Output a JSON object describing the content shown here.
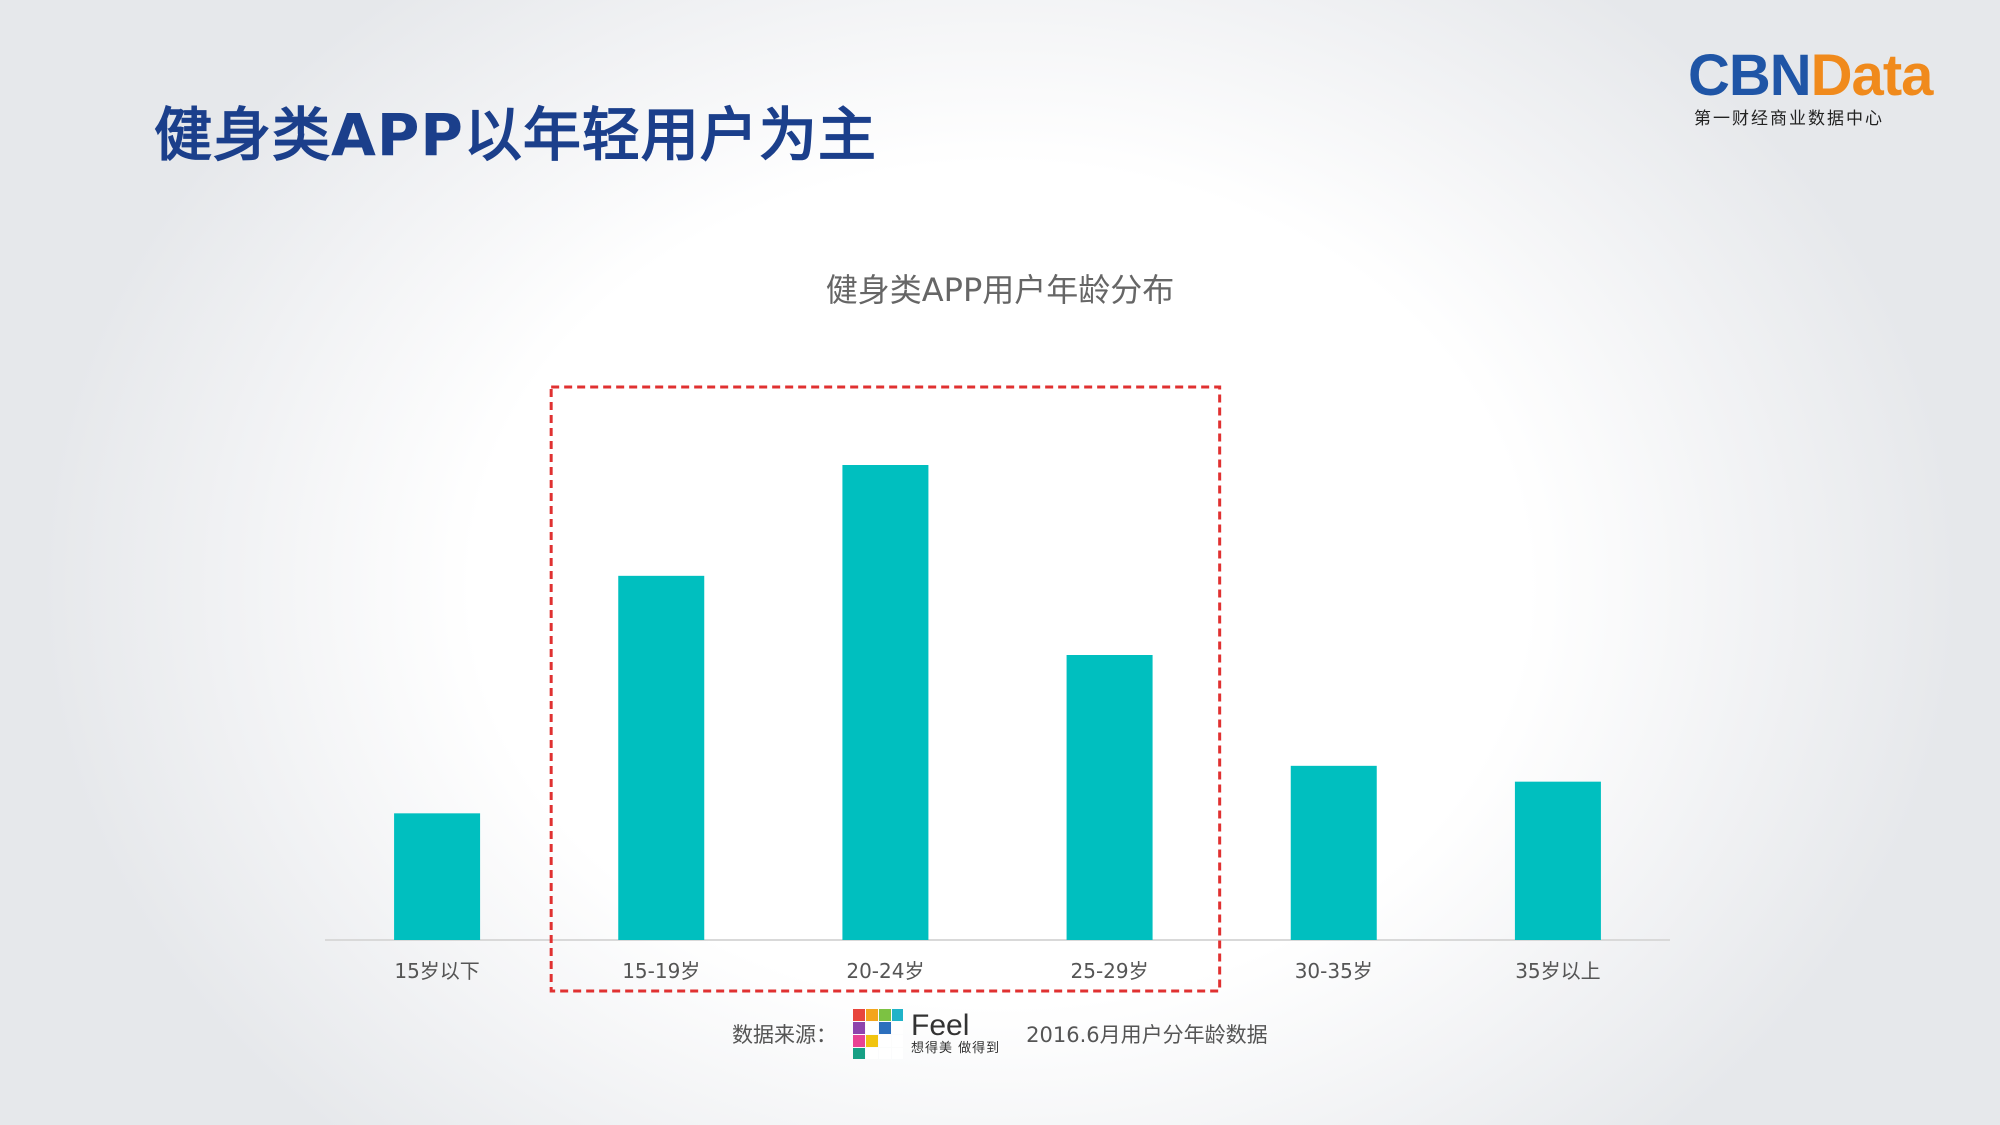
{
  "slide": {
    "title": "健身类APP以年轻用户为主"
  },
  "logo": {
    "brand_part1": "CBN",
    "brand_part2": "Data",
    "subtitle": "第一财经商业数据中心",
    "colors": {
      "part1": "#1f55a6",
      "part2": "#f08a1c"
    }
  },
  "chart_data": {
    "type": "bar",
    "title": "健身类APP用户年龄分布",
    "categories": [
      "15岁以下",
      "15-19岁",
      "20-24岁",
      "25-29岁",
      "30-35岁",
      "35岁以上"
    ],
    "values": [
      8,
      23,
      30,
      18,
      11,
      10
    ],
    "ylim": [
      0,
      35
    ],
    "grid": false,
    "xlabel": "",
    "ylabel": "",
    "bar_color": "#00bfbf",
    "highlight": {
      "categories": [
        "15-19岁",
        "20-24岁",
        "25-29岁"
      ],
      "style": "dashed-box",
      "color": "#e03131"
    }
  },
  "source": {
    "label": "数据来源：",
    "logo_name": "Feel",
    "logo_slogan": "想得美 做得到",
    "note": "2016.6月用户分年龄数据",
    "logo_icon": "feel-logo-icon"
  }
}
